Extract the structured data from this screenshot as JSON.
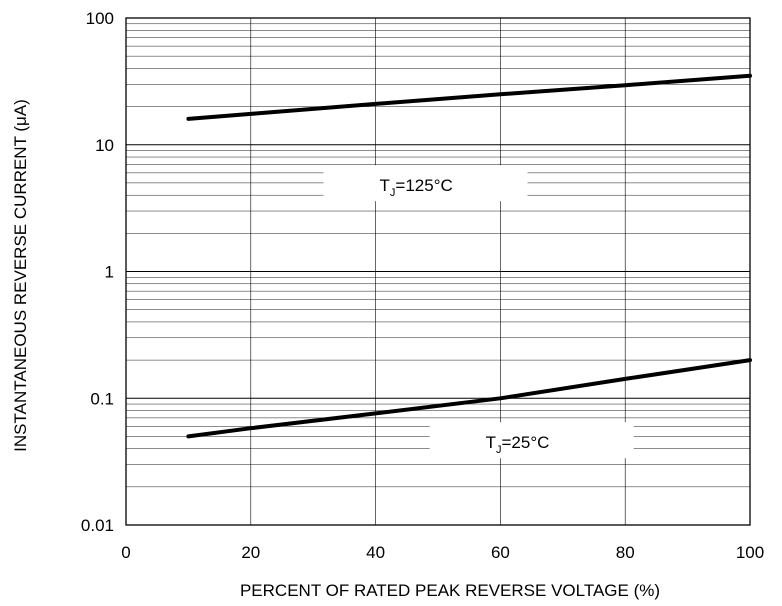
{
  "chart_data": {
    "type": "line",
    "title": "",
    "xlabel": "PERCENT OF RATED PEAK REVERSE VOLTAGE (%)",
    "ylabel": "INSTANTANEOUS REVERSE CURRENT (μA)",
    "xlim": [
      0,
      100
    ],
    "ylim": [
      0.01,
      100
    ],
    "y_scale": "log",
    "grid": true,
    "x_ticks": [
      "0",
      "20",
      "40",
      "60",
      "80",
      "100"
    ],
    "y_ticks": [
      "0.01",
      "0.1",
      "1",
      "10",
      "100"
    ],
    "series": [
      {
        "x": [
          10,
          20,
          40,
          60,
          80,
          100
        ],
        "values": [
          16,
          17.5,
          21,
          25,
          29.5,
          35
        ]
      },
      {
        "x": [
          10,
          20,
          40,
          60,
          80,
          100
        ],
        "values": [
          0.05,
          0.058,
          0.076,
          0.1,
          0.142,
          0.2
        ]
      }
    ],
    "annotations": [
      {
        "label": "T",
        "subscript": "J",
        "text": "=125°C",
        "x": 48,
        "y": 4.8
      },
      {
        "label": "T",
        "subscript": "J",
        "text": "=25°C",
        "x": 65,
        "y": 0.045
      }
    ]
  }
}
